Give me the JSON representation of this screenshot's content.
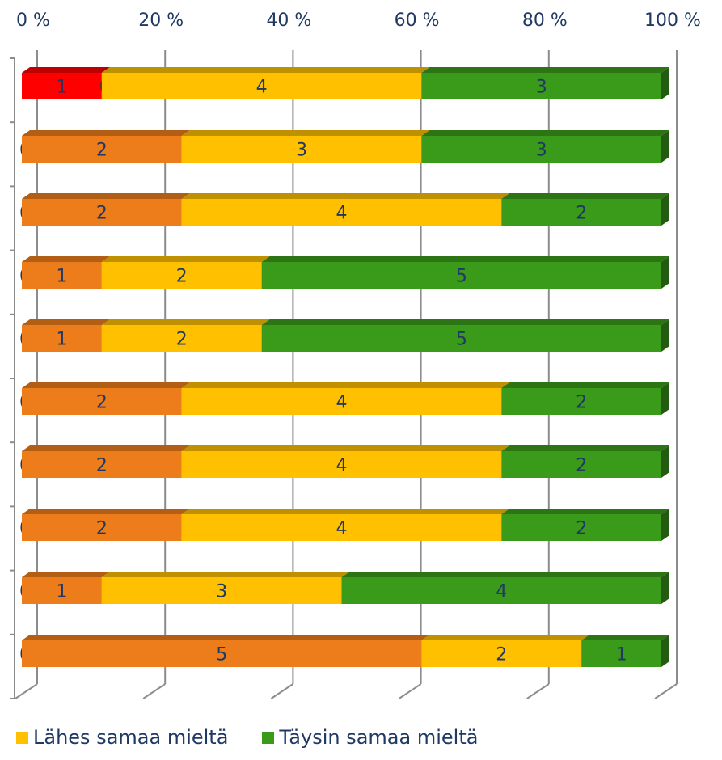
{
  "chart_data": {
    "type": "bar",
    "orientation": "horizontal",
    "stacked": "percent",
    "style": "3d",
    "x_tick_labels": [
      "0 %",
      "20 %",
      "40 %",
      "60 %",
      "80 %",
      "100 %"
    ],
    "xlim": [
      0,
      100
    ],
    "grid": true,
    "legend_position": "bottom-left",
    "series": [
      {
        "color": "#ff0000",
        "values": [
          1,
          0,
          0,
          0,
          0,
          0,
          0,
          0,
          0,
          0
        ]
      },
      {
        "color": "#ed7d1a",
        "values": [
          0,
          2,
          2,
          1,
          1,
          2,
          2,
          2,
          1,
          5
        ]
      },
      {
        "name": "Lähes samaa mieltä",
        "color": "#ffc000",
        "values": [
          4,
          3,
          4,
          2,
          2,
          4,
          4,
          4,
          3,
          2
        ]
      },
      {
        "name": "Täysin samaa mieltä",
        "color": "#3a9a1a",
        "values": [
          3,
          3,
          2,
          5,
          5,
          2,
          2,
          2,
          4,
          1
        ]
      }
    ]
  },
  "legend": [
    {
      "label": "Lähes samaa mieltä",
      "color": "#ffc000"
    },
    {
      "label": "Täysin samaa mieltä",
      "color": "#3a9a1a"
    }
  ]
}
